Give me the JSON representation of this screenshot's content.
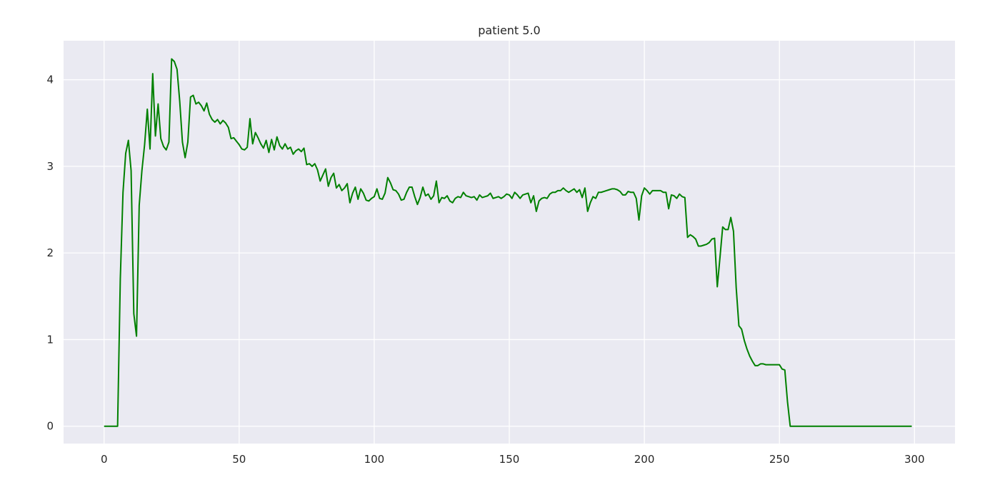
{
  "chart_data": {
    "type": "line",
    "title": "patient 5.0",
    "xlabel": "",
    "ylabel": "",
    "xlim": [
      -15,
      315
    ],
    "ylim": [
      -0.2,
      4.45
    ],
    "xticks": [
      0,
      50,
      100,
      150,
      200,
      250,
      300
    ],
    "yticks": [
      0,
      1,
      2,
      3,
      4
    ],
    "xtick_labels": [
      "0",
      "50",
      "100",
      "150",
      "200",
      "250",
      "300"
    ],
    "ytick_labels": [
      "0",
      "1",
      "2",
      "3",
      "4"
    ],
    "grid": true,
    "legend": "none",
    "colors": {
      "line": "#008000",
      "background": "#eaeaf2",
      "grid": "#ffffff"
    },
    "series": [
      {
        "x": [
          0,
          1,
          2,
          3,
          4,
          5,
          6,
          7,
          8,
          9,
          10,
          11,
          12,
          13,
          14,
          15,
          16,
          17,
          18,
          19,
          20,
          21,
          22,
          23,
          24,
          25,
          26,
          27,
          28,
          29,
          30,
          31,
          32,
          33,
          34,
          35,
          36,
          37,
          38,
          39,
          40,
          41,
          42,
          43,
          44,
          45,
          46,
          47,
          48,
          49,
          50,
          51,
          52,
          53,
          54,
          55,
          56,
          57,
          58,
          59,
          60,
          61,
          62,
          63,
          64,
          65,
          66,
          67,
          68,
          69,
          70,
          71,
          72,
          73,
          74,
          75,
          76,
          77,
          78,
          79,
          80,
          81,
          82,
          83,
          84,
          85,
          86,
          87,
          88,
          89,
          90,
          91,
          92,
          93,
          94,
          95,
          96,
          97,
          98,
          99,
          100,
          101,
          102,
          103,
          104,
          105,
          106,
          107,
          108,
          109,
          110,
          111,
          112,
          113,
          114,
          115,
          116,
          117,
          118,
          119,
          120,
          121,
          122,
          123,
          124,
          125,
          126,
          127,
          128,
          129,
          130,
          131,
          132,
          133,
          134,
          135,
          136,
          137,
          138,
          139,
          140,
          141,
          142,
          143,
          144,
          145,
          146,
          147,
          148,
          149,
          150,
          151,
          152,
          153,
          154,
          155,
          156,
          157,
          158,
          159,
          160,
          161,
          162,
          163,
          164,
          165,
          166,
          167,
          168,
          169,
          170,
          171,
          172,
          173,
          174,
          175,
          176,
          177,
          178,
          179,
          180,
          181,
          182,
          183,
          184,
          185,
          186,
          187,
          188,
          189,
          190,
          191,
          192,
          193,
          194,
          195,
          196,
          197,
          198,
          199,
          200,
          201,
          202,
          203,
          204,
          205,
          206,
          207,
          208,
          209,
          210,
          211,
          212,
          213,
          214,
          215,
          216,
          217,
          218,
          219,
          220,
          221,
          222,
          223,
          224,
          225,
          226,
          227,
          228,
          229,
          230,
          231,
          232,
          233,
          234,
          235,
          236,
          237,
          238,
          239,
          240,
          241,
          242,
          243,
          244,
          245,
          246,
          247,
          248,
          249,
          250,
          251,
          252,
          253,
          254,
          255,
          260,
          270,
          280,
          290,
          299
        ],
        "y": [
          0,
          0,
          0,
          0,
          0,
          0,
          1.7,
          2.7,
          3.15,
          3.3,
          2.95,
          1.3,
          1.04,
          2.55,
          2.95,
          3.25,
          3.66,
          3.2,
          4.07,
          3.35,
          3.72,
          3.32,
          3.23,
          3.19,
          3.28,
          4.24,
          4.21,
          4.12,
          3.75,
          3.28,
          3.1,
          3.28,
          3.8,
          3.82,
          3.72,
          3.74,
          3.7,
          3.64,
          3.73,
          3.6,
          3.54,
          3.51,
          3.54,
          3.49,
          3.53,
          3.5,
          3.45,
          3.32,
          3.33,
          3.29,
          3.25,
          3.2,
          3.19,
          3.22,
          3.55,
          3.26,
          3.39,
          3.33,
          3.26,
          3.21,
          3.3,
          3.16,
          3.31,
          3.19,
          3.34,
          3.24,
          3.2,
          3.26,
          3.2,
          3.22,
          3.14,
          3.18,
          3.2,
          3.17,
          3.21,
          3.02,
          3.03,
          3.0,
          3.03,
          2.96,
          2.83,
          2.9,
          2.97,
          2.77,
          2.87,
          2.92,
          2.75,
          2.79,
          2.72,
          2.75,
          2.8,
          2.58,
          2.69,
          2.76,
          2.62,
          2.74,
          2.69,
          2.61,
          2.6,
          2.63,
          2.65,
          2.74,
          2.63,
          2.62,
          2.69,
          2.87,
          2.81,
          2.73,
          2.72,
          2.68,
          2.61,
          2.62,
          2.7,
          2.76,
          2.76,
          2.65,
          2.56,
          2.64,
          2.76,
          2.66,
          2.68,
          2.62,
          2.66,
          2.83,
          2.58,
          2.64,
          2.63,
          2.66,
          2.6,
          2.58,
          2.63,
          2.65,
          2.64,
          2.7,
          2.66,
          2.65,
          2.64,
          2.65,
          2.61,
          2.67,
          2.64,
          2.65,
          2.66,
          2.69,
          2.63,
          2.64,
          2.65,
          2.63,
          2.65,
          2.68,
          2.67,
          2.63,
          2.7,
          2.67,
          2.63,
          2.67,
          2.68,
          2.69,
          2.58,
          2.66,
          2.48,
          2.6,
          2.63,
          2.64,
          2.63,
          2.68,
          2.7,
          2.7,
          2.72,
          2.72,
          2.75,
          2.72,
          2.7,
          2.72,
          2.74,
          2.7,
          2.73,
          2.64,
          2.75,
          2.48,
          2.58,
          2.65,
          2.63,
          2.7,
          2.7,
          2.71,
          2.72,
          2.73,
          2.74,
          2.74,
          2.73,
          2.71,
          2.67,
          2.67,
          2.71,
          2.7,
          2.7,
          2.63,
          2.38,
          2.66,
          2.75,
          2.72,
          2.68,
          2.72,
          2.72,
          2.72,
          2.72,
          2.7,
          2.7,
          2.51,
          2.67,
          2.66,
          2.63,
          2.68,
          2.65,
          2.64,
          2.18,
          2.21,
          2.19,
          2.16,
          2.08,
          2.08,
          2.09,
          2.1,
          2.12,
          2.16,
          2.17,
          1.61,
          1.95,
          2.3,
          2.27,
          2.27,
          2.41,
          2.25,
          1.6,
          1.16,
          1.12,
          0.99,
          0.89,
          0.81,
          0.75,
          0.7,
          0.7,
          0.72,
          0.72,
          0.71,
          0.71,
          0.71,
          0.71,
          0.71,
          0.71,
          0.66,
          0.65,
          0.28,
          0.0,
          0,
          0,
          0,
          0,
          0,
          0
        ]
      }
    ]
  }
}
